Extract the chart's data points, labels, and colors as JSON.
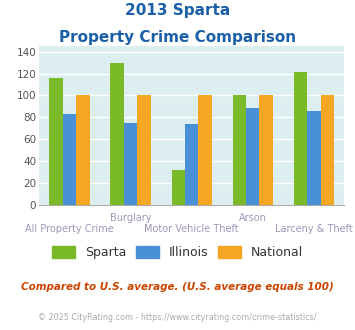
{
  "title_line1": "2013 Sparta",
  "title_line2": "Property Crime Comparison",
  "categories": [
    "All Property Crime",
    "Burglary",
    "Motor Vehicle Theft",
    "Arson",
    "Larceny & Theft"
  ],
  "category_labels_top": [
    "",
    "Burglary",
    "",
    "Arson",
    ""
  ],
  "category_labels_bottom": [
    "All Property Crime",
    "",
    "Motor Vehicle Theft",
    "",
    "Larceny & Theft"
  ],
  "sparta": [
    116,
    130,
    32,
    100,
    121
  ],
  "illinois": [
    83,
    75,
    74,
    88,
    86
  ],
  "national": [
    100,
    100,
    100,
    100,
    100
  ],
  "sparta_color": "#7aba28",
  "illinois_color": "#4a90d9",
  "national_color": "#f5a623",
  "bg_color": "#ddeef0",
  "title_color": "#1a5fa8",
  "xlabel_top_color": "#9999bb",
  "xlabel_bot_color": "#9999bb",
  "footnote_color": "#cc4400",
  "copyright_color": "#aaaaaa",
  "ylim": [
    0,
    145
  ],
  "yticks": [
    0,
    20,
    40,
    60,
    80,
    100,
    120,
    140
  ],
  "footnote": "Compared to U.S. average. (U.S. average equals 100)",
  "copyright": "© 2025 CityRating.com - https://www.cityrating.com/crime-statistics/",
  "legend_labels": [
    "Sparta",
    "Illinois",
    "National"
  ]
}
